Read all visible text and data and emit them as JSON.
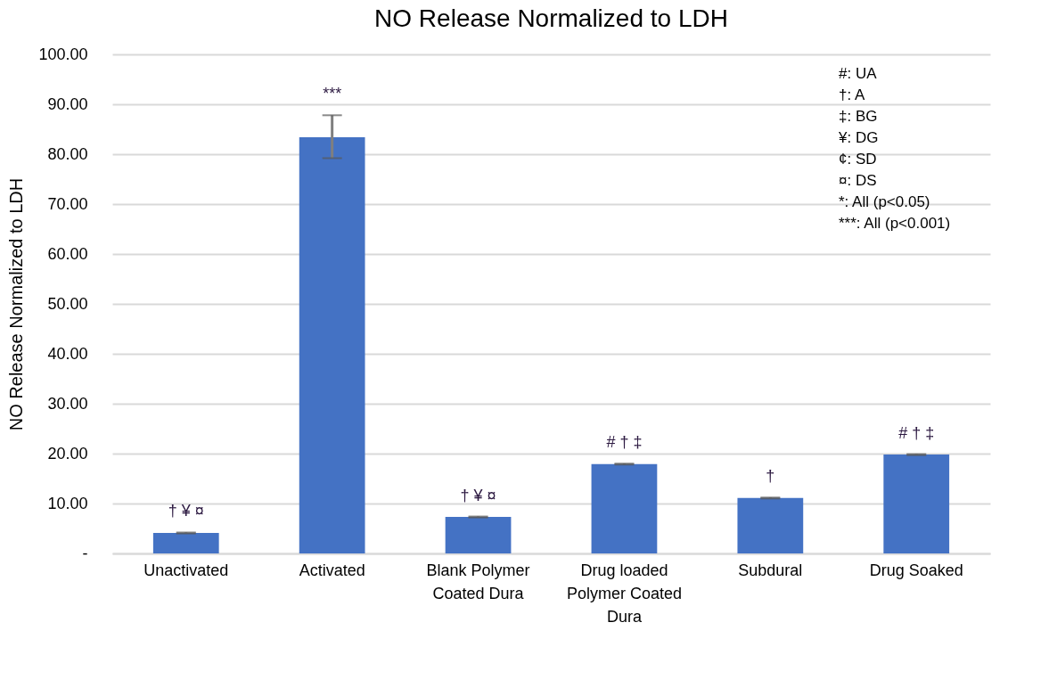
{
  "chart_data": {
    "type": "bar",
    "title": "NO Release Normalized to LDH",
    "ylabel": "NO Release Normalized to LDH",
    "categories": [
      "Unactivated",
      "Activated",
      "Blank Polymer Coated Dura",
      "Drug loaded Polymer Coated Dura",
      "Subdural",
      "Drug Soaked"
    ],
    "values": [
      4.1,
      83.4,
      7.3,
      17.9,
      11.1,
      19.8
    ],
    "errors": [
      0.1,
      [
        79.2,
        87.8
      ],
      0.1,
      0.1,
      0.1,
      0.1
    ],
    "color": "#4472c4",
    "ylim": [
      0,
      100
    ],
    "yticks": [
      {
        "value": 0,
        "label": "-"
      },
      {
        "value": 10,
        "label": "10.00"
      },
      {
        "value": 20,
        "label": "20.00"
      },
      {
        "value": 30,
        "label": "30.00"
      },
      {
        "value": 40,
        "label": "40.00"
      },
      {
        "value": 50,
        "label": "50.00"
      },
      {
        "value": 60,
        "label": "60.00"
      },
      {
        "value": 70,
        "label": "70.00"
      },
      {
        "value": 80,
        "label": "80.00"
      },
      {
        "value": 90,
        "label": "90.00"
      },
      {
        "value": 100,
        "label": "100.00"
      }
    ],
    "grid": "y",
    "annotations": [
      {
        "text": "† ¥ ¤",
        "x": "Unactivated",
        "y": 4.1
      },
      {
        "text": "***",
        "x": "Activated",
        "y": 83.4
      },
      {
        "text": "† ¥ ¤",
        "x": "Blank Polymer Coated Dura",
        "y": 7.3
      },
      {
        "text": "# † ‡",
        "x": "Drug loaded Polymer Coated Dura",
        "y": 17.9
      },
      {
        "text": "†",
        "x": "Subdural",
        "y": 11.1
      },
      {
        "text": "# † ‡",
        "x": "Drug Soaked",
        "y": 19.8
      },
      "#: UA",
      "†: A",
      "‡: BG",
      "¥: DG",
      "¢: SD",
      "¤: DS",
      "*: All (p<0.05)",
      "***: All (p<0.001)"
    ]
  }
}
